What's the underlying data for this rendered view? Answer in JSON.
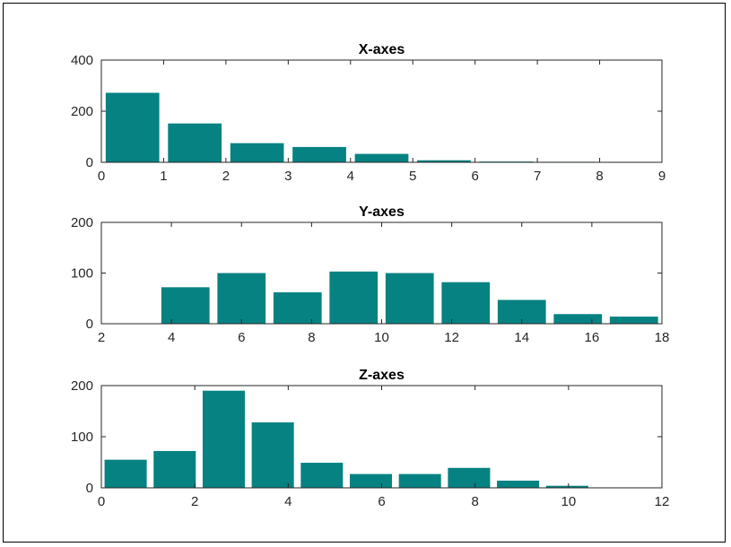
{
  "chart_data": [
    {
      "type": "bar",
      "title": "X-axes",
      "bar_color": "#078282",
      "bin_width": 1,
      "x": [
        0.5,
        1.5,
        2.5,
        3.5,
        4.5,
        5.5,
        6.5,
        7.5,
        8.5
      ],
      "values": [
        272,
        152,
        75,
        60,
        33,
        8,
        3,
        2,
        1
      ],
      "xlim": [
        0,
        9
      ],
      "ylim": [
        0,
        400
      ],
      "xticks": [
        0,
        1,
        2,
        3,
        4,
        5,
        6,
        7,
        8,
        9
      ],
      "yticks": [
        0,
        200,
        400
      ],
      "xlabel": "",
      "ylabel": ""
    },
    {
      "type": "bar",
      "title": "Y-axes",
      "bar_color": "#078282",
      "bin_width": 1.6,
      "x": [
        4.4,
        6.0,
        7.6,
        9.2,
        10.8,
        12.4,
        14.0,
        15.6,
        17.2
      ],
      "values": [
        72,
        100,
        62,
        103,
        100,
        82,
        47,
        19,
        14
      ],
      "x_extra": [],
      "xlim": [
        2,
        18
      ],
      "ylim": [
        0,
        200
      ],
      "xticks": [
        2,
        4,
        6,
        8,
        10,
        12,
        14,
        16,
        18
      ],
      "yticks": [
        0,
        100,
        200
      ],
      "xlabel": "",
      "ylabel": ""
    },
    {
      "type": "bar",
      "title": "Z-axes",
      "bar_color": "#078282",
      "bin_width": 1.05,
      "x": [
        0.52,
        1.57,
        2.62,
        3.67,
        4.72,
        5.77,
        6.82,
        7.87,
        8.92,
        9.97
      ],
      "values": [
        55,
        72,
        190,
        128,
        49,
        27,
        27,
        39,
        14,
        4
      ],
      "xlim": [
        0,
        12
      ],
      "ylim": [
        0,
        200
      ],
      "xticks": [
        0,
        2,
        4,
        6,
        8,
        10,
        12
      ],
      "yticks": [
        0,
        100,
        200
      ],
      "xlabel": "",
      "ylabel": ""
    }
  ]
}
